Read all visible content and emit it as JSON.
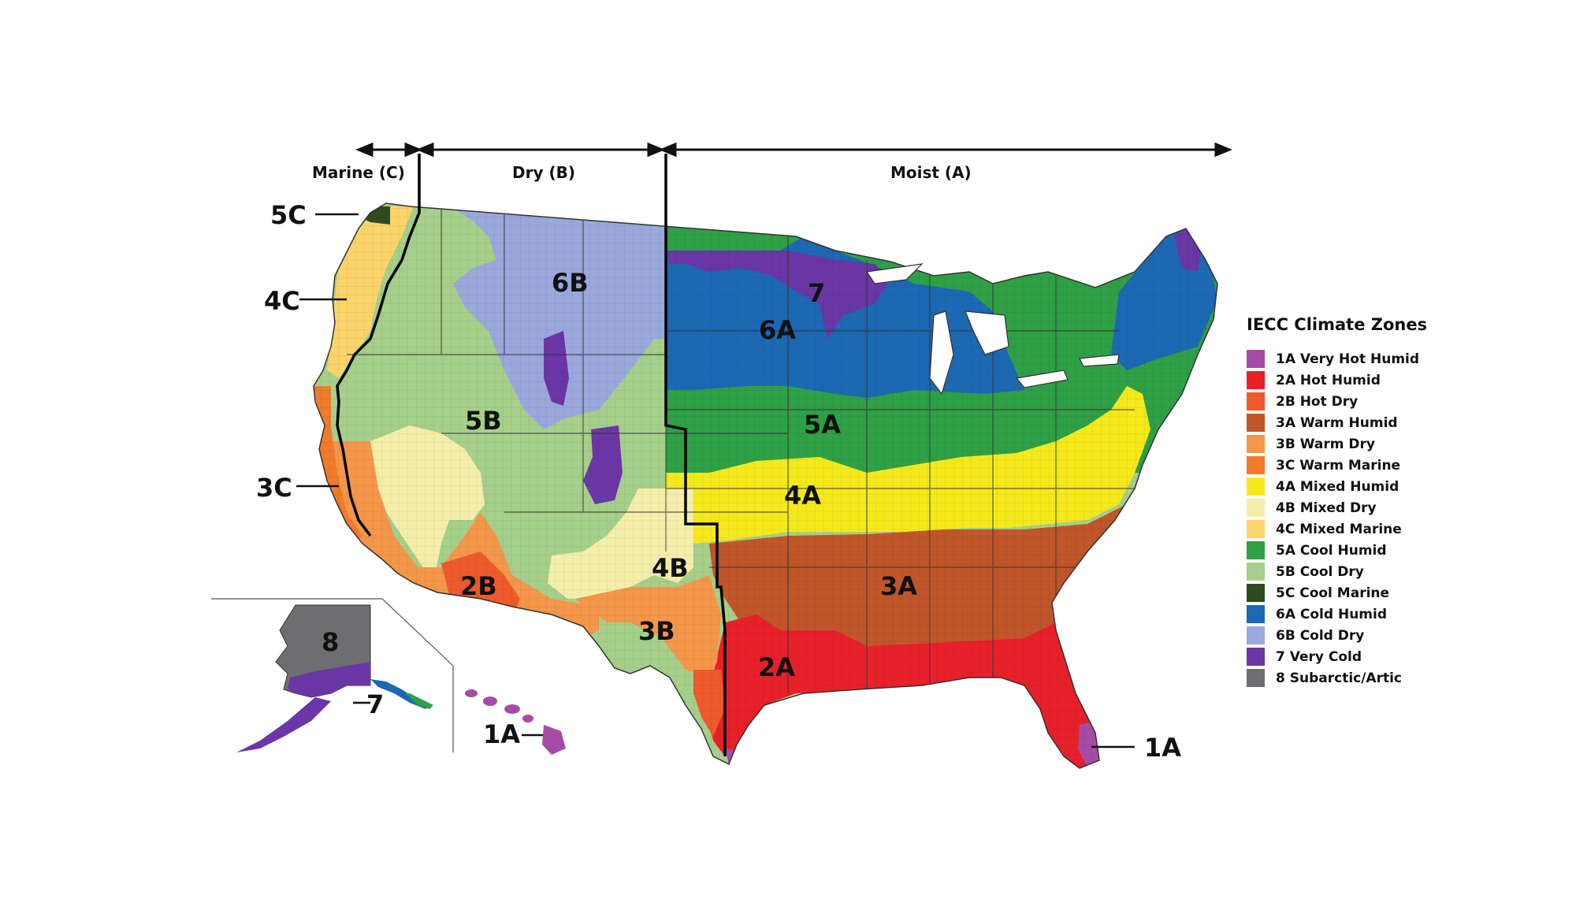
{
  "header": {
    "marine": "Marine (C)",
    "dry": "Dry (B)",
    "moist": "Moist (A)"
  },
  "zone_labels": {
    "z6B": "6B",
    "z7": "7",
    "z6A": "6A",
    "z5B": "5B",
    "z5A": "5A",
    "z4A": "4A",
    "z4B": "4B",
    "z3A": "3A",
    "z3B": "3B",
    "z2B": "2B",
    "z2A": "2A",
    "ak8": "8",
    "ak7": "7",
    "hi1A": "1A"
  },
  "callouts": {
    "c5C": "5C",
    "c4C": "4C",
    "c3C": "3C",
    "c1A": "1A"
  },
  "legend": {
    "title": "IECC Climate Zones",
    "items": [
      {
        "label": "1A Very Hot Humid",
        "color": "#a64ca6"
      },
      {
        "label": "2A Hot Humid",
        "color": "#e8202a"
      },
      {
        "label": "2B Hot Dry",
        "color": "#ee5a2b"
      },
      {
        "label": "3A Warm Humid",
        "color": "#c0562a"
      },
      {
        "label": "3B Warm Dry",
        "color": "#f4974a"
      },
      {
        "label": "3C Warm Marine",
        "color": "#f07b2b"
      },
      {
        "label": "4A Mixed Humid",
        "color": "#f5e91c"
      },
      {
        "label": "4B Mixed Dry",
        "color": "#f5eeaa"
      },
      {
        "label": "4C Mixed Marine",
        "color": "#fcd46a"
      },
      {
        "label": "5A Cool Humid",
        "color": "#2fa046"
      },
      {
        "label": "5B Cool Dry",
        "color": "#a5cf8a"
      },
      {
        "label": "5C Cool Marine",
        "color": "#2f4a22"
      },
      {
        "label": "6A Cold Humid",
        "color": "#1d68b3"
      },
      {
        "label": "6B Cold Dry",
        "color": "#9aa8dc"
      },
      {
        "label": "7 Very Cold",
        "color": "#6b36a6"
      },
      {
        "label": "8 Subarctic/Artic",
        "color": "#6e6e70"
      }
    ]
  }
}
